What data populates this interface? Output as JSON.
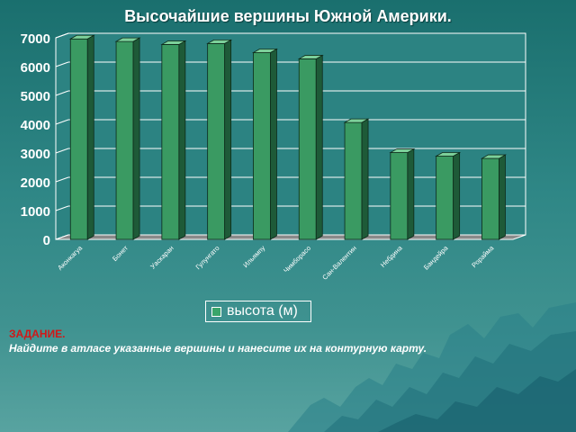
{
  "title": "Высочайшие вершины Южной Америки.",
  "legend": {
    "label": "высота (м)"
  },
  "task": {
    "heading": "ЗАДАНИЕ.",
    "text": "Найдите в атласе указанные вершины и нанесите их на контурную карту."
  },
  "colors": {
    "bar_front": "#3a9a62",
    "bar_top": "#7cd09a",
    "bar_side": "#1e5a38",
    "plot_bg": "#2c8382",
    "grid": "#ffffff",
    "task_heading": "#d01818"
  },
  "chart_data": {
    "type": "bar",
    "title": "Высочайшие вершины Южной Америки.",
    "categories": [
      "Аконкагуа",
      "Бонет",
      "Уаскаран",
      "Гулунгато",
      "Ильямпу",
      "Чимборасо",
      "Сан-Валентин",
      "Небдина",
      "Бандейра",
      "Рорайма"
    ],
    "series": [
      {
        "name": "высота (м)",
        "values": [
          6960,
          6872,
          6768,
          6800,
          6485,
          6267,
          4058,
          3014,
          2890,
          2810
        ]
      }
    ],
    "ylim": [
      0,
      7000
    ],
    "yticks": [
      0,
      1000,
      2000,
      3000,
      4000,
      5000,
      6000,
      7000
    ],
    "grid": true,
    "legend_position": "bottom"
  }
}
